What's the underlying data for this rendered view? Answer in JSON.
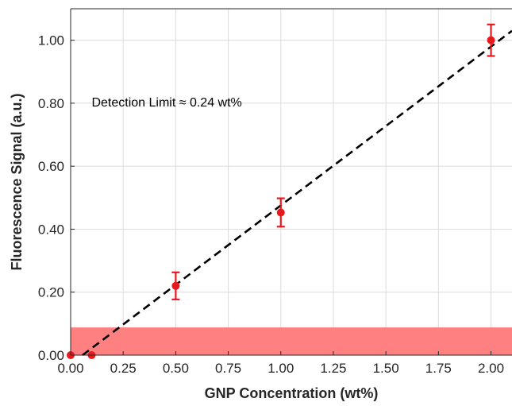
{
  "chart_data": {
    "type": "scatter",
    "xlabel": "GNP Concentration (wt%)",
    "ylabel": "Fluorescence Signal (a.u.)",
    "xlim": [
      0,
      2.1
    ],
    "ylim": [
      0,
      1.1
    ],
    "x_ticks": [
      0,
      0.25,
      0.5,
      0.75,
      1.0,
      1.25,
      1.5,
      1.75,
      2.0
    ],
    "x_tick_labels": [
      "0.00",
      "0.25",
      "0.50",
      "0.75",
      "1.00",
      "1.25",
      "1.50",
      "1.75",
      "2.00"
    ],
    "y_ticks": [
      0,
      0.2,
      0.4,
      0.6,
      0.8,
      1.0
    ],
    "y_tick_labels": [
      "0.00",
      "0.20",
      "0.40",
      "0.60",
      "0.80",
      "1.00"
    ],
    "grid": true,
    "series": [
      {
        "kind": "points_with_error",
        "color": "#e8191c",
        "points": [
          {
            "x": 0.0,
            "y": 0.0,
            "err": 0
          },
          {
            "x": 0.1,
            "y": 0.0,
            "err": 0
          },
          {
            "x": 0.5,
            "y": 0.22,
            "err": 0.043
          },
          {
            "x": 1.0,
            "y": 0.453,
            "err": 0.045
          },
          {
            "x": 2.0,
            "y": 1.0,
            "err": 0.05
          }
        ]
      },
      {
        "kind": "fit_line",
        "color": "#000000",
        "x": [
          0.0565,
          2.1
        ],
        "y": [
          0.0,
          1.03
        ]
      }
    ],
    "band": {
      "y_from": 0.0,
      "y_to": 0.088,
      "color": "#ff8080"
    },
    "annotations": [
      {
        "text": "Detection Limit ≈ 0.24 wt%",
        "x": 0.1,
        "y": 0.79
      }
    ]
  }
}
